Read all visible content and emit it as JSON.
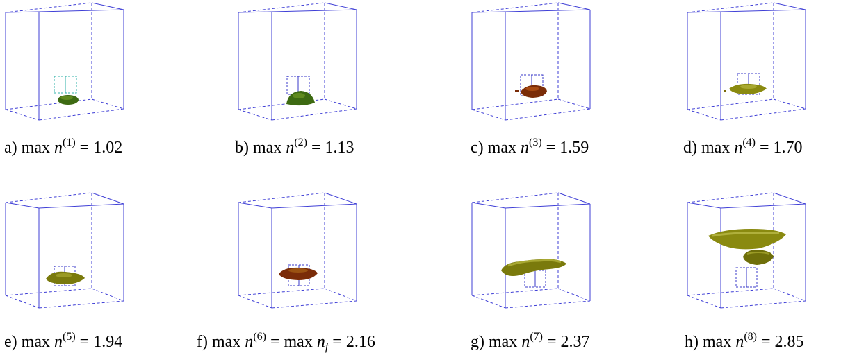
{
  "colors": {
    "box_line": "#3f3fd6",
    "inner_box_line": "#3a3ac8",
    "inner_box_line_a": "#2fb0a8",
    "dark_green": "#3d6a12",
    "dark_brown": "#7a2c08",
    "olive": "#8a8a10",
    "background": "#ffffff"
  },
  "panels": [
    {
      "id": "a",
      "letter": "a)",
      "func": "max",
      "var": "n",
      "sup": "(1)",
      "mid": "",
      "eq": "=",
      "value": "1.02",
      "object": "small-green-blob"
    },
    {
      "id": "b",
      "letter": "b)",
      "func": "max",
      "var": "n",
      "sup": "(2)",
      "mid": "",
      "eq": "=",
      "value": "1.13",
      "object": "green-blob"
    },
    {
      "id": "c",
      "letter": "c)",
      "func": "max",
      "var": "n",
      "sup": "(3)",
      "mid": "",
      "eq": "=",
      "value": "1.59",
      "object": "brown-blob"
    },
    {
      "id": "d",
      "letter": "d)",
      "func": "max",
      "var": "n",
      "sup": "(4)",
      "mid": "",
      "eq": "=",
      "value": "1.70",
      "object": "olive-blob"
    },
    {
      "id": "e",
      "letter": "e)",
      "func": "max",
      "var": "n",
      "sup": "(5)",
      "mid": "",
      "eq": "=",
      "value": "1.94",
      "object": "olive-blob"
    },
    {
      "id": "f",
      "letter": "f)",
      "func": "max",
      "var": "n",
      "sup": "(6)",
      "mid": "max",
      "midvar": "n",
      "midsub": "f",
      "eq": "=",
      "value": "2.16",
      "object": "brown-blob"
    },
    {
      "id": "g",
      "letter": "g)",
      "func": "max",
      "var": "n",
      "sup": "(7)",
      "mid": "",
      "eq": "=",
      "value": "2.37",
      "object": "olive-elongated-blob"
    },
    {
      "id": "h",
      "letter": "h)",
      "func": "max",
      "var": "n",
      "sup": "(8)",
      "mid": "",
      "eq": "=",
      "value": "2.85",
      "object": "olive-mushroom-blob"
    }
  ]
}
